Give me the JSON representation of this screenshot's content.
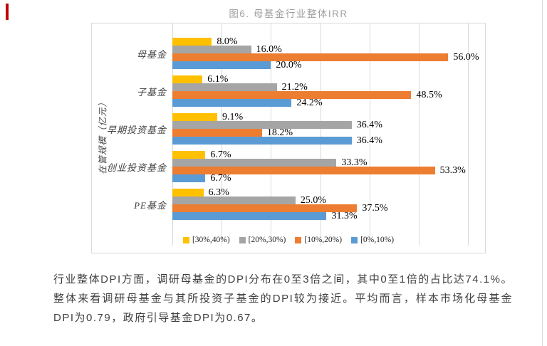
{
  "page": {
    "accent_color": "#C00000",
    "edge_border_color": "#D9D9D9"
  },
  "figure": {
    "title": "图6. 母基金行业整体IRR"
  },
  "chart_data": {
    "type": "bar",
    "orientation": "horizontal",
    "title": "图6. 母基金行业整体IRR",
    "ylabel": "在管规模（亿元）",
    "xlabel": "",
    "xlim": [
      0,
      60
    ],
    "gridline_step": 10,
    "grid": true,
    "legend_position": "bottom-inside",
    "data_label_format": "0.0%",
    "categories": [
      "母基金",
      "子基金",
      "早期投资基金",
      "创业投资基金",
      "PE基金"
    ],
    "series": [
      {
        "name": "[30%,40%)",
        "color": "#FFC000",
        "values": [
          8.0,
          6.1,
          9.1,
          6.7,
          6.3
        ]
      },
      {
        "name": "[20%,30%)",
        "color": "#A5A5A5",
        "values": [
          16.0,
          21.2,
          36.4,
          33.3,
          25.0
        ]
      },
      {
        "name": "[10%,20%)",
        "color": "#ED7D31",
        "values": [
          56.0,
          48.5,
          18.2,
          53.3,
          37.5
        ]
      },
      {
        "name": "[0%,10%)",
        "color": "#5B9BD5",
        "values": [
          20.0,
          24.2,
          36.4,
          6.7,
          31.3
        ]
      }
    ]
  },
  "paragraph": {
    "text": "行业整体DPI方面，调研母基金的DPI分布在0至3倍之间，其中0至1倍的占比达74.1%。整体来看调研母基金与其所投资子基金的DPI较为接近。平均而言，样本市场化母基金DPI为0.79，政府引导基金DPI为0.67。"
  }
}
